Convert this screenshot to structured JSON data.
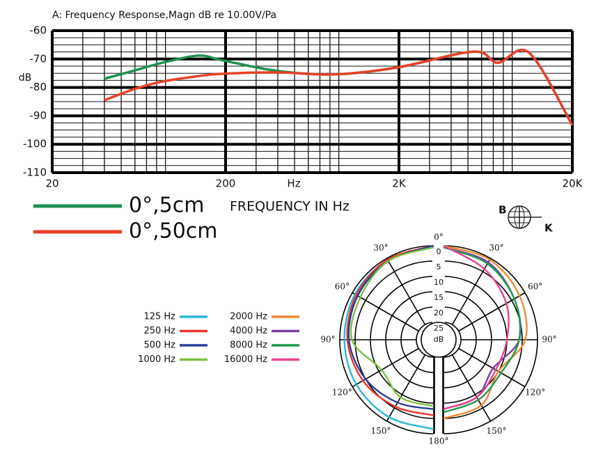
{
  "chart_data": [
    {
      "type": "line",
      "title": "A: Frequency Response,Magn dB re 10.00V/Pa",
      "ylabel": "dB",
      "x_unit": "Hz",
      "xlabel": "FREQUENCY IN Hz",
      "logo": [
        "B",
        "K"
      ],
      "xscale": "log",
      "xlim": [
        20,
        20000
      ],
      "xticks": [
        20,
        200,
        {
          "value": 2000,
          "label": "2K"
        },
        {
          "value": 20000,
          "label": "20K"
        }
      ],
      "ylim": [
        -110,
        -60
      ],
      "yticks": [
        -60,
        -70,
        -80,
        -90,
        -100,
        -110
      ],
      "grid": true,
      "x": [
        40,
        60,
        84,
        139,
        193,
        400,
        850,
        1950,
        5380,
        7430,
        11270,
        20000
      ],
      "series": [
        {
          "name": "0°,5cm",
          "color": "#1e9150",
          "values": [
            -76.9,
            -74,
            -71.5,
            -68.8,
            -70.5,
            -74.2,
            -75.4,
            -73,
            -67.4,
            -71.3,
            -67.8,
            -93.3
          ]
        },
        {
          "name": "0°,50cm",
          "color": "#e8402a",
          "values": [
            -84.5,
            -80.5,
            -78.1,
            -76,
            -75.2,
            -74.7,
            -75.4,
            -73,
            -67.4,
            -71.3,
            -67.8,
            -93.3
          ]
        }
      ]
    },
    {
      "type": "polar",
      "rlabel": "dB",
      "rlim": [
        0,
        25
      ],
      "rticks": [
        0,
        5,
        10,
        15,
        20,
        25
      ],
      "theta": [
        0,
        30,
        60,
        90,
        120,
        150,
        180
      ],
      "thetaticks": [
        {
          "value": 0,
          "label": "0°"
        },
        {
          "value": 30,
          "label": "30°"
        },
        {
          "value": 60,
          "label": "60°"
        },
        {
          "value": 90,
          "label": "90°"
        },
        {
          "value": 120,
          "label": "120°"
        },
        {
          "value": 150,
          "label": "150°"
        },
        {
          "value": 180,
          "label": "180°"
        }
      ],
      "series": [
        {
          "name": "125 Hz",
          "color": "#2bb7d9",
          "side": "left",
          "values": [
            0,
            0.5,
            1,
            1.5,
            1.5,
            1.5,
            1.5
          ]
        },
        {
          "name": "250 Hz",
          "color": "#e8352a",
          "side": "left",
          "values": [
            0,
            0.5,
            1.5,
            2.5,
            4,
            5.5,
            6
          ]
        },
        {
          "name": "500 Hz",
          "color": "#2b3e9c",
          "side": "left",
          "values": [
            0,
            1,
            2,
            3,
            5,
            7,
            8
          ]
        },
        {
          "name": "1000 Hz",
          "color": "#7ac143",
          "side": "left",
          "values": [
            0.5,
            1,
            3,
            4,
            11,
            9,
            9
          ]
        },
        {
          "name": "2000 Hz",
          "color": "#f08a30",
          "side": "right",
          "values": [
            0,
            0.5,
            2,
            4,
            10,
            6,
            5
          ]
        },
        {
          "name": "4000 Hz",
          "color": "#7b3fa0",
          "side": "right",
          "values": [
            0.5,
            1.5,
            4,
            6,
            12,
            9,
            8
          ]
        },
        {
          "name": "8000 Hz",
          "color": "#1f9a4e",
          "side": "right",
          "values": [
            0.5,
            2,
            4,
            6,
            9,
            8,
            7
          ]
        },
        {
          "name": "16000 Hz",
          "color": "#e8428c",
          "side": "right",
          "values": [
            0,
            4,
            7,
            10,
            11,
            9,
            8
          ]
        }
      ]
    }
  ]
}
